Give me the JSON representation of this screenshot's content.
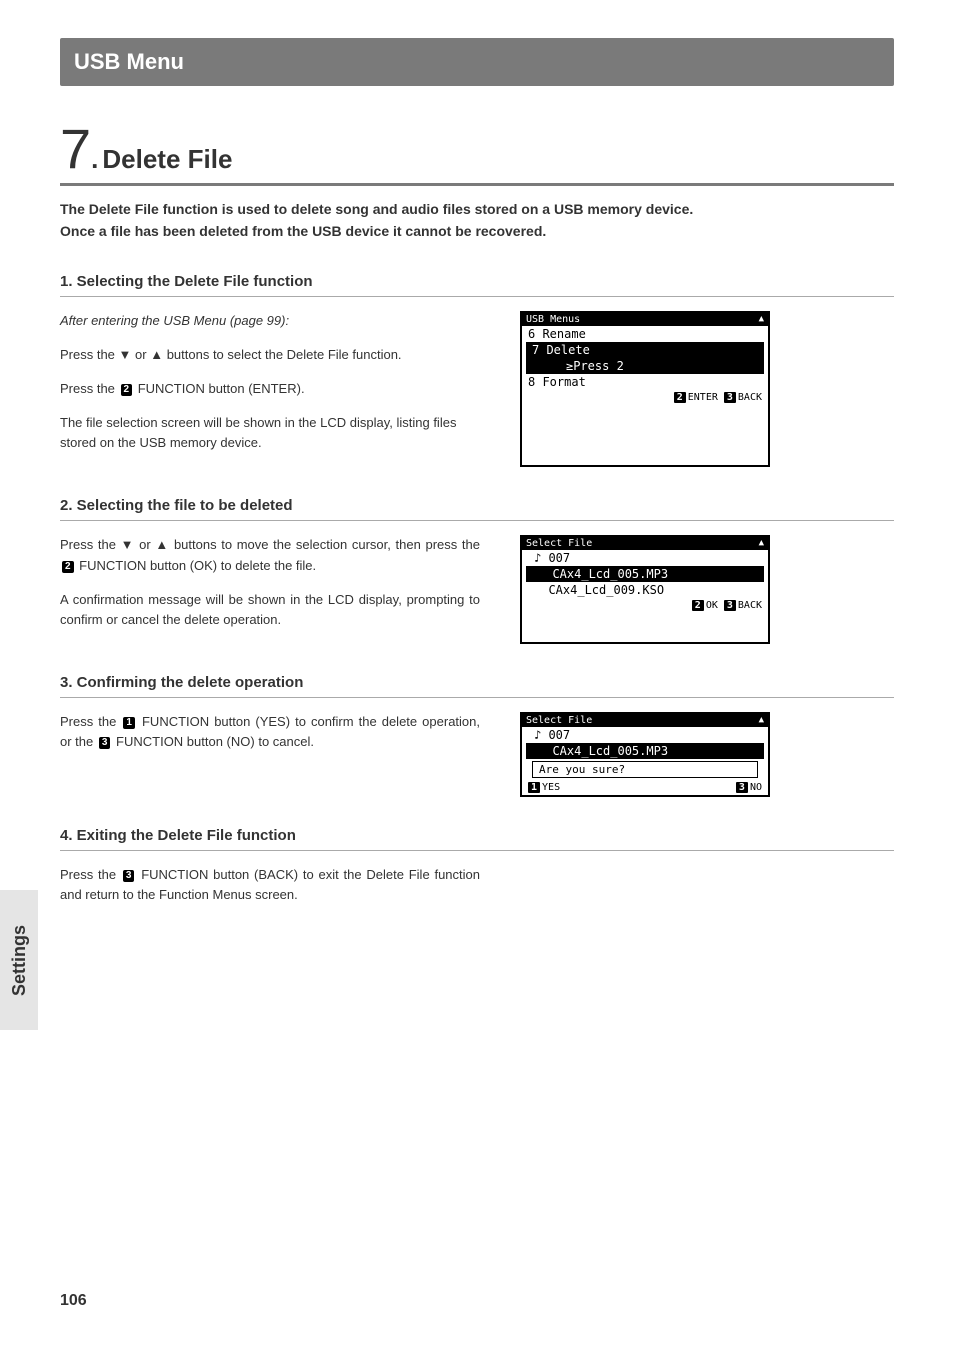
{
  "sideTab": "Settings",
  "headerBar": "USB Menu",
  "pageNumber": "106",
  "title": {
    "num": "7",
    "dot": ".",
    "text": "Delete File"
  },
  "intro": {
    "line1": "The Delete File function is used to delete song and audio files stored on a USB memory device.",
    "line2": "Once a file has been deleted from the USB device it cannot be recovered."
  },
  "sec1": {
    "head": "1. Selecting the Delete File function",
    "p1": "After entering the USB Menu (page 99):",
    "p2a": "Press the ",
    "p2b": " or ",
    "p2c": " buttons to select the Delete File function.",
    "down": "▼",
    "up": "▲",
    "p3a": "Press the ",
    "badge": "2",
    "p3b": " FUNCTION button (ENTER).",
    "p4": "The file selection screen will be shown in the LCD display, listing files stored on the USB memory device.",
    "lcd": {
      "title": "USB Menus",
      "r1": "6 Rename",
      "r2": "7 Delete",
      "r2sub": "≥Press 2",
      "r3": "8 Format",
      "f2n": "2",
      "f2t": "ENTER",
      "f3n": "3",
      "f3t": "BACK"
    }
  },
  "sec2": {
    "head": "2. Selecting the file to be deleted",
    "p1a": "Press the ",
    "down": "▼",
    "p1b": " or ",
    "up": "▲",
    "p1c": " buttons to move the selection cursor, then press the ",
    "badge": "2",
    "p1d": " FUNCTION button (OK) to delete the file.",
    "p2": "A confirmation message will be shown in the LCD display, prompting to confirm or cancel the delete operation.",
    "lcd": {
      "title": "Select File",
      "r1": "♪ 007",
      "r2": "  CAx4_Lcd_005.MP3",
      "r3": "  CAx4_Lcd_009.KSO",
      "f2n": "2",
      "f2t": "OK",
      "f3n": "3",
      "f3t": "BACK"
    }
  },
  "sec3": {
    "head": "3. Confirming the delete operation",
    "p1a": "Press the ",
    "badge1": "1",
    "p1b": " FUNCTION button (YES) to confirm the delete operation, or the ",
    "badge3": "3",
    "p1c": " FUNCTION button (NO) to cancel.",
    "lcd": {
      "title": "Select File",
      "r1": "♪ 007",
      "r2": "  CAx4_Lcd_005.MP3",
      "box": "Are you sure?",
      "f1n": "1",
      "f1t": "YES",
      "f3n": "3",
      "f3t": "NO"
    }
  },
  "sec4": {
    "head": "4. Exiting the Delete File function",
    "p1a": "Press the ",
    "badge": "3",
    "p1b": " FUNCTION button (BACK) to exit the Delete File function and return to the Function Menus screen."
  }
}
